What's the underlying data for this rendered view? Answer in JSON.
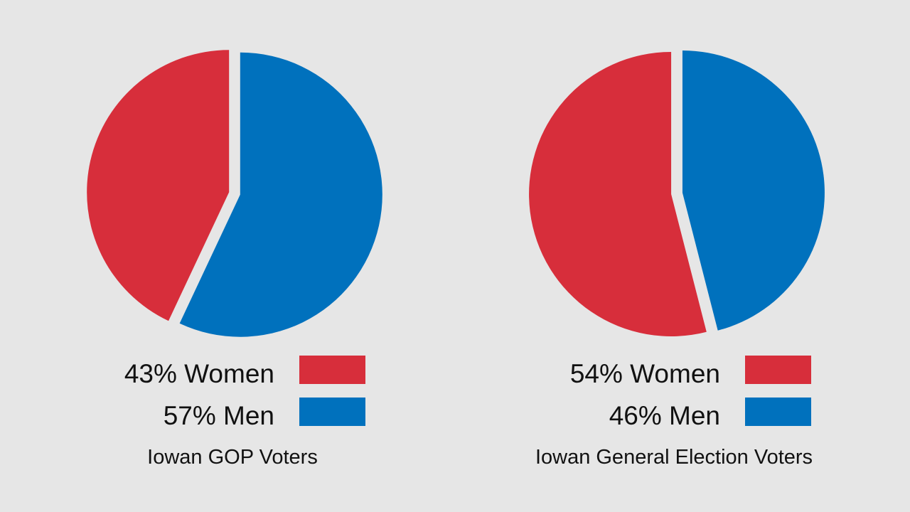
{
  "colors": {
    "background": "#e6e6e6",
    "women": "#d72e3b",
    "men": "#0071bd"
  },
  "chart_data": [
    {
      "type": "pie",
      "title": "Iowan GOP Voters",
      "slices": [
        {
          "label": "Women",
          "value": 43,
          "display": "43% Women",
          "color": "#d72e3b"
        },
        {
          "label": "Men",
          "value": 57,
          "display": "57% Men",
          "color": "#0071bd"
        }
      ]
    },
    {
      "type": "pie",
      "title": "Iowan General Election Voters",
      "slices": [
        {
          "label": "Women",
          "value": 54,
          "display": "54% Women",
          "color": "#d72e3b"
        },
        {
          "label": "Men",
          "value": 46,
          "display": "46% Men",
          "color": "#0071bd"
        }
      ]
    }
  ]
}
